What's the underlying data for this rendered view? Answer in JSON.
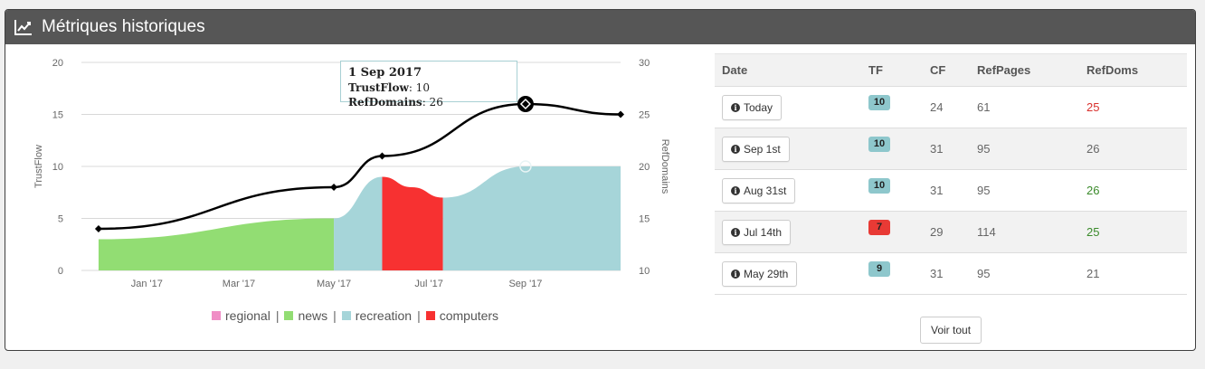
{
  "panel": {
    "title": "Métriques historiques",
    "icon": "line-chart-icon"
  },
  "chart_data": {
    "type": "area",
    "left_axis": {
      "label": "TrustFlow",
      "ticks": [
        0,
        5,
        10,
        15,
        20
      ],
      "range": [
        0,
        20
      ]
    },
    "right_axis": {
      "label": "RefDomains",
      "ticks": [
        10,
        15,
        20,
        25,
        30
      ],
      "range": [
        10,
        30
      ]
    },
    "x_axis": {
      "ticks": [
        "Jan '17",
        "Mar '17",
        "May '17",
        "Jul '17",
        "Sep '17"
      ]
    },
    "area_series": [
      {
        "name": "news",
        "color": "#92dd73",
        "points": [
          [
            "2016-12-01",
            3
          ],
          [
            "2017-05-01",
            5
          ]
        ]
      },
      {
        "name": "recreation",
        "color": "#a6d5d9",
        "points": [
          [
            "2017-05-01",
            5
          ],
          [
            "2017-06-01",
            9
          ]
        ]
      },
      {
        "name": "computers",
        "color": "#f73131",
        "points": [
          [
            "2017-06-01",
            9
          ],
          [
            "2017-06-20",
            8
          ],
          [
            "2017-07-10",
            7
          ]
        ]
      },
      {
        "name": "recreation",
        "color": "#a6d5d9",
        "points": [
          [
            "2017-07-10",
            7
          ],
          [
            "2017-09-01",
            10
          ],
          [
            "2017-11-01",
            10
          ]
        ]
      }
    ],
    "line_series": {
      "name": "RefDomains",
      "color": "#000000",
      "points": [
        [
          "2016-12-01",
          14
        ],
        [
          "2017-05-01",
          18
        ],
        [
          "2017-06-01",
          21
        ],
        [
          "2017-09-01",
          26
        ],
        [
          "2017-11-01",
          25
        ]
      ]
    },
    "legend": [
      {
        "name": "regional",
        "color": "#f08ec6"
      },
      {
        "name": "news",
        "color": "#92dd73"
      },
      {
        "name": "recreation",
        "color": "#a6d5d9"
      },
      {
        "name": "computers",
        "color": "#f73131"
      }
    ],
    "legend_separator": "|",
    "legend_position": "bottom"
  },
  "tooltip": {
    "date": "1 Sep 2017",
    "tf_label": "TrustFlow",
    "tf_value": ": 10",
    "rd_label": "RefDomains",
    "rd_value": ": 26"
  },
  "table": {
    "headers": [
      "Date",
      "TF",
      "CF",
      "RefPages",
      "RefDoms"
    ],
    "rows": [
      {
        "date": "Today",
        "tf": "10",
        "tf_color": "#8ec7cc",
        "cf": "24",
        "refpages": "61",
        "refdoms": "25",
        "refdoms_color": "red"
      },
      {
        "date": "Sep 1st",
        "tf": "10",
        "tf_color": "#8ec7cc",
        "cf": "31",
        "refpages": "95",
        "refdoms": "26",
        "refdoms_color": "default"
      },
      {
        "date": "Aug 31st",
        "tf": "10",
        "tf_color": "#8ec7cc",
        "cf": "31",
        "refpages": "95",
        "refdoms": "26",
        "refdoms_color": "green"
      },
      {
        "date": "Jul 14th",
        "tf": "7",
        "tf_color": "#e83a35",
        "cf": "29",
        "refpages": "114",
        "refdoms": "25",
        "refdoms_color": "green"
      },
      {
        "date": "May 29th",
        "tf": "9",
        "tf_color": "#8ec7cc",
        "cf": "31",
        "refpages": "95",
        "refdoms": "21",
        "refdoms_color": "default"
      }
    ],
    "info_glyph": "i"
  },
  "voir_tout": "Voir tout"
}
